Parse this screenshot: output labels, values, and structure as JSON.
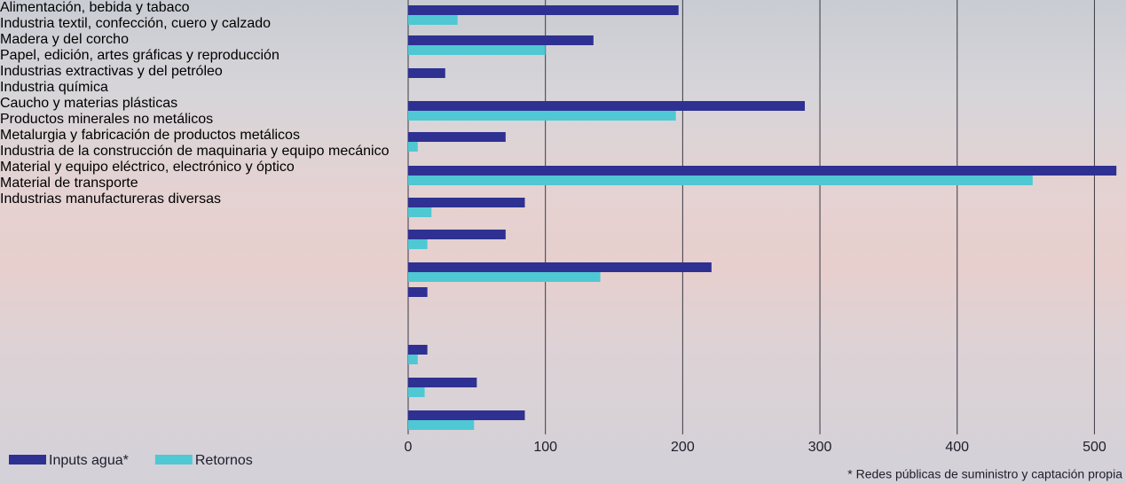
{
  "chart_data": {
    "type": "barh",
    "categories": [
      "Alimentación, bebida y tabaco",
      "Industria textil, confección, cuero y calzado",
      "Madera y del corcho",
      "Papel, edición, artes gráficas y reproducción",
      "Industrias extractivas y del petróleo",
      "Industria química",
      "Caucho y materias plásticas",
      "Productos minerales no metálicos",
      "Metalurgia y fabricación de productos metálicos",
      "Industria de la construcción de maquinaria\ny equipo mecánico",
      "Material y equipo eléctrico, electrónico y óptico",
      "Material de transporte",
      "Industrias manufactureras diversas"
    ],
    "series": [
      {
        "name": "Inputs agua*",
        "color": "#2e3192",
        "values": [
          197,
          135,
          27,
          289,
          71,
          516,
          85,
          71,
          221,
          14,
          14,
          50,
          85
        ]
      },
      {
        "name": "Retornos",
        "color": "#4fc8d3",
        "values": [
          36,
          100,
          0,
          195,
          7,
          455,
          17,
          14,
          140,
          0,
          7,
          12,
          48
        ]
      }
    ],
    "xlim": [
      0,
      523
    ],
    "xticks": [
      0,
      100,
      200,
      300,
      400,
      500
    ],
    "grid": true,
    "legend": "bottom-left",
    "footnote": "* Redes públicas de suministro y captación propia"
  }
}
